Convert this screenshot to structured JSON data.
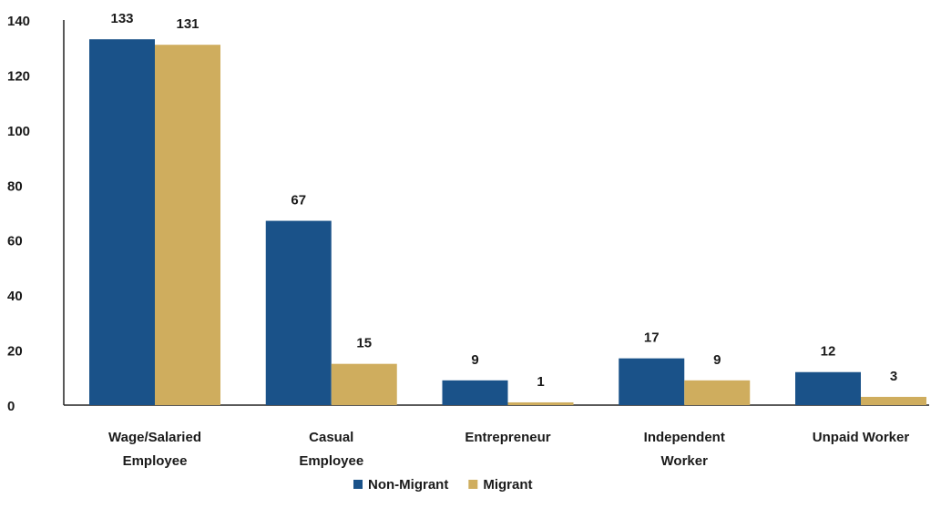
{
  "chart_data": {
    "type": "bar",
    "categories": [
      "Wage/Salaried Employee",
      "Casual Employee",
      "Entrepreneur",
      "Independent Worker",
      "Unpaid Worker"
    ],
    "series": [
      {
        "name": "Non-Migrant",
        "color": "#1a5289",
        "values": [
          133,
          67,
          9,
          17,
          12
        ]
      },
      {
        "name": "Migrant",
        "color": "#cfad5e",
        "values": [
          131,
          15,
          1,
          9,
          3
        ]
      }
    ],
    "ylim": [
      0,
      140
    ],
    "yticks": [
      0,
      20,
      40,
      60,
      80,
      100,
      120,
      140
    ],
    "grid": false,
    "legend": "bottom"
  }
}
